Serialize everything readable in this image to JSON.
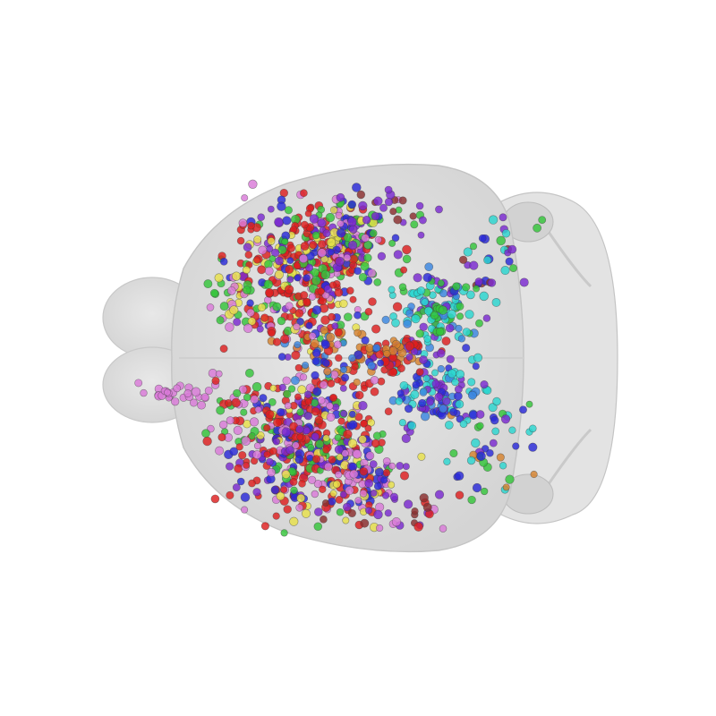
{
  "scene": {
    "background": "#ffffff",
    "brain_fill": "#dedede",
    "brain_outline": "#c4c4c4",
    "marker_palette": {
      "red": "#dd1f1f",
      "blue": "#2a2ad8",
      "purple": "#7a2ad0",
      "magenta": "#d97ad8",
      "green": "#35c43a",
      "yellow": "#e8e04a",
      "cyan": "#2bd6d0",
      "orange": "#d6822e",
      "brown": "#8a2e2e",
      "skyblue": "#3a86e0"
    }
  }
}
